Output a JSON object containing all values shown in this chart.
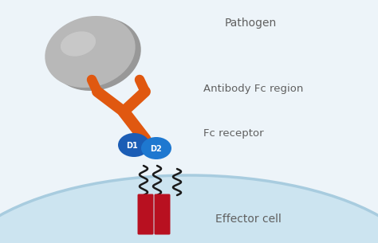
{
  "bg_color": "#edf4f9",
  "cell_color": "#cce4f0",
  "cell_edge_color": "#a8ccdf",
  "pathogen_color": "#b8b8b8",
  "pathogen_highlight": "#d0d0d0",
  "pathogen_shadow": "#989898",
  "antibody_color": "#e05810",
  "d1_color": "#1b5db5",
  "d2_color": "#1e78d0",
  "transmembrane_color": "#b81020",
  "wavy_color": "#1a1a1a",
  "text_color": "#606060",
  "label_pathogen": "Pathogen",
  "label_antibody": "Antibody Fc region",
  "label_fc": "Fc receptor",
  "label_effector": "Effector cell",
  "label_d1": "D1",
  "label_d2": "D2",
  "font_size": 9.5,
  "figsize": [
    4.74,
    3.05
  ],
  "dpi": 100
}
